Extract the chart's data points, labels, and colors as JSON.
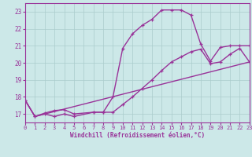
{
  "xlabel": "Windchill (Refroidissement éolien,°C)",
  "xlim": [
    0,
    23
  ],
  "ylim": [
    16.5,
    23.5
  ],
  "xticks": [
    0,
    1,
    2,
    3,
    4,
    5,
    6,
    7,
    8,
    9,
    10,
    11,
    12,
    13,
    14,
    15,
    16,
    17,
    18,
    19,
    20,
    21,
    22,
    23
  ],
  "yticks": [
    17,
    18,
    19,
    20,
    21,
    22,
    23
  ],
  "color": "#993399",
  "bg_color": "#cce8e8",
  "grid_color": "#aacccc",
  "line1_x": [
    0,
    1,
    2,
    3,
    4,
    5,
    7,
    8,
    9,
    10,
    11,
    12,
    13,
    14,
    15,
    16,
    17,
    18,
    19,
    20,
    21,
    22,
    23
  ],
  "line1_y": [
    17.8,
    16.85,
    17.0,
    16.85,
    17.0,
    16.85,
    17.1,
    17.1,
    18.0,
    20.85,
    21.7,
    22.2,
    22.55,
    23.1,
    23.1,
    23.1,
    22.8,
    21.1,
    20.1,
    20.9,
    21.0,
    21.0,
    21.0
  ],
  "line2_x": [
    0,
    1,
    2,
    3,
    4,
    5,
    7,
    8,
    9,
    10,
    11,
    12,
    13,
    14,
    15,
    16,
    17,
    18,
    19,
    20,
    21,
    22,
    23
  ],
  "line2_y": [
    17.8,
    16.85,
    17.05,
    17.2,
    17.25,
    17.0,
    17.1,
    17.1,
    17.1,
    17.55,
    18.0,
    18.5,
    19.0,
    19.55,
    20.05,
    20.35,
    20.65,
    20.8,
    19.95,
    20.05,
    20.5,
    20.85,
    20.05
  ],
  "line3_x": [
    0,
    1,
    23
  ],
  "line3_y": [
    17.8,
    16.85,
    20.05
  ],
  "linewidth": 1.0,
  "markersize": 3.5
}
